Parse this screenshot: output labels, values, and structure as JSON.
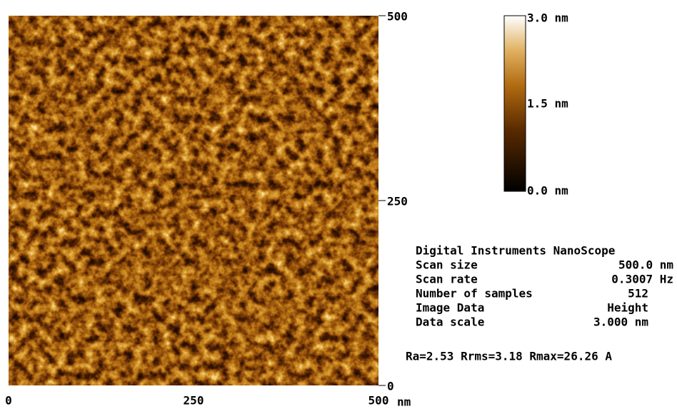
{
  "image": {
    "x_ticks": [
      "0",
      "250",
      "500"
    ],
    "x_unit": "nm",
    "y_ticks": [
      "0",
      "250",
      "500"
    ]
  },
  "color_scale": {
    "labels": [
      "3.0 nm",
      "1.5 nm",
      "0.0 nm"
    ]
  },
  "info": {
    "title": "Digital Instruments NanoScope",
    "rows": [
      [
        "Scan size",
        "500.0 nm"
      ],
      [
        "Scan rate",
        "0.3007 Hz"
      ],
      [
        "Number of samples",
        "512"
      ],
      [
        "Image Data",
        "Height"
      ],
      [
        "Data scale",
        "3.000 nm"
      ]
    ]
  },
  "roughness": "Ra=2.53 Rrms=3.18 Rmax=26.26 A"
}
